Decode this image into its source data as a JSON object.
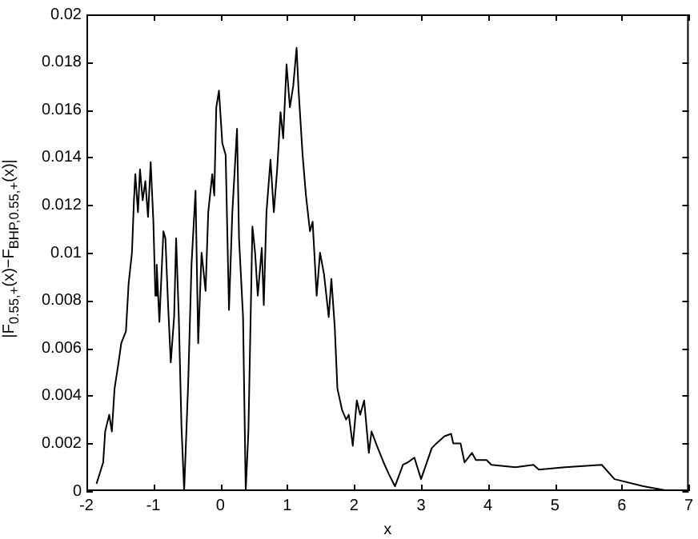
{
  "chart_data": {
    "type": "line",
    "xlabel": "x",
    "ylabel": "|F$_{0.55,+}$(x)−F$_{BHP,0.55,+}$(x)|",
    "xlim": [
      -2,
      7
    ],
    "xticks": [
      -2,
      -1,
      0,
      1,
      2,
      3,
      4,
      5,
      6,
      7
    ],
    "ylim": [
      0,
      0.02
    ],
    "yticks": [
      0,
      0.002,
      0.004,
      0.006,
      0.008,
      0.01,
      0.012,
      0.014,
      0.016,
      0.018,
      0.02
    ],
    "grid": false,
    "legend": false,
    "marker": "none",
    "line_style": "solid",
    "series": [
      {
        "color": "#000000",
        "x": [
          -1.85,
          -1.75,
          -1.72,
          -1.66,
          -1.62,
          -1.58,
          -1.52,
          -1.48,
          -1.41,
          -1.37,
          -1.32,
          -1.29,
          -1.27,
          -1.23,
          -1.2,
          -1.16,
          -1.12,
          -1.08,
          -1.04,
          -1.0,
          -0.97,
          -0.95,
          -0.91,
          -0.85,
          -0.82,
          -0.78,
          -0.74,
          -0.69,
          -0.66,
          -0.62,
          -0.58,
          -0.54,
          -0.48,
          -0.43,
          -0.37,
          -0.33,
          -0.28,
          -0.22,
          -0.18,
          -0.12,
          -0.09,
          -0.06,
          -0.02,
          0.03,
          0.08,
          0.13,
          0.18,
          0.25,
          0.28,
          0.34,
          0.38,
          0.42,
          0.48,
          0.52,
          0.56,
          0.62,
          0.65,
          0.69,
          0.75,
          0.8,
          0.85,
          0.9,
          0.94,
          0.99,
          1.04,
          1.09,
          1.14,
          1.17,
          1.23,
          1.28,
          1.34,
          1.38,
          1.44,
          1.49,
          1.55,
          1.62,
          1.66,
          1.71,
          1.75,
          1.82,
          1.88,
          1.92,
          1.98,
          2.04,
          2.09,
          2.15,
          2.22,
          2.26,
          2.34,
          2.44,
          2.52,
          2.61,
          2.73,
          2.8,
          2.9,
          3.0,
          3.16,
          3.23,
          3.35,
          3.45,
          3.48,
          3.59,
          3.65,
          3.76,
          3.82,
          3.98,
          4.05,
          4.41,
          4.68,
          4.76,
          5.15,
          5.7,
          5.89,
          6.32,
          6.71
        ],
        "values": [
          0.0003,
          0.0012,
          0.0025,
          0.0032,
          0.0025,
          0.0043,
          0.0054,
          0.0062,
          0.0067,
          0.0087,
          0.01,
          0.0122,
          0.0133,
          0.0117,
          0.0135,
          0.0122,
          0.013,
          0.0115,
          0.0138,
          0.0113,
          0.0082,
          0.0095,
          0.0071,
          0.0109,
          0.0106,
          0.0078,
          0.0054,
          0.0073,
          0.0106,
          0.0073,
          0.0027,
          0.0,
          0.0045,
          0.0095,
          0.0126,
          0.0062,
          0.01,
          0.0084,
          0.0117,
          0.0133,
          0.0124,
          0.0161,
          0.0168,
          0.0146,
          0.0141,
          0.0076,
          0.0117,
          0.0152,
          0.0106,
          0.0073,
          0.0,
          0.0025,
          0.0111,
          0.01,
          0.0082,
          0.0102,
          0.0078,
          0.0117,
          0.0139,
          0.0117,
          0.0135,
          0.0159,
          0.0148,
          0.0179,
          0.0161,
          0.017,
          0.0186,
          0.0168,
          0.0141,
          0.0124,
          0.0109,
          0.0113,
          0.0082,
          0.01,
          0.0091,
          0.0073,
          0.0089,
          0.0069,
          0.0043,
          0.0034,
          0.003,
          0.0032,
          0.0019,
          0.0038,
          0.0032,
          0.0038,
          0.0016,
          0.0025,
          0.0019,
          0.0012,
          0.0007,
          0.0002,
          0.0011,
          0.0012,
          0.0014,
          0.0005,
          0.0018,
          0.002,
          0.0023,
          0.0024,
          0.002,
          0.002,
          0.0012,
          0.0016,
          0.0013,
          0.0013,
          0.0011,
          0.001,
          0.0011,
          0.0009,
          0.001,
          0.0011,
          0.0005,
          0.0002,
          0.0
        ]
      }
    ]
  }
}
